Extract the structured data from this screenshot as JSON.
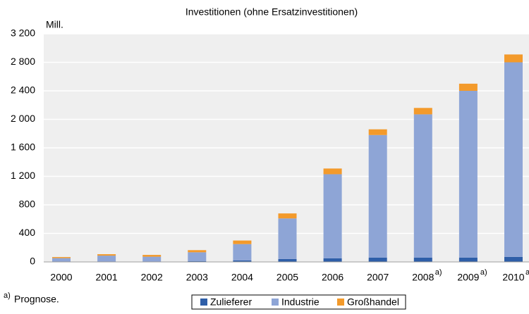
{
  "chart_data": {
    "type": "stacked_bar",
    "title": "Investitionen (ohne Ersatzinvestitionen)",
    "y_unit_label": "Mill.",
    "categories": [
      "2000",
      "2001",
      "2002",
      "2003",
      "2004",
      "2005",
      "2006",
      "2007",
      "2008",
      "2009",
      "2010"
    ],
    "category_notes": [
      null,
      null,
      null,
      null,
      null,
      null,
      null,
      null,
      "a)",
      "a)",
      "a)"
    ],
    "series": [
      {
        "name": "Zulieferer",
        "color": "#2e5ea8",
        "values": [
          3,
          3,
          3,
          10,
          20,
          40,
          50,
          60,
          60,
          60,
          70
        ]
      },
      {
        "name": "Industrie",
        "color": "#8ea5d6",
        "values": [
          50,
          85,
          70,
          125,
          230,
          570,
          1180,
          1720,
          2010,
          2340,
          2730
        ]
      },
      {
        "name": "Großhandel",
        "color": "#f39a2b",
        "values": [
          15,
          20,
          25,
          30,
          50,
          70,
          80,
          80,
          90,
          100,
          110
        ]
      }
    ],
    "ylim": [
      0,
      3200
    ],
    "yticks": [
      0,
      400,
      800,
      {
        "value": 1200,
        "label": "1 200"
      },
      {
        "value": 1600,
        "label": "1 600"
      },
      {
        "value": 2000,
        "label": "2 000"
      },
      {
        "value": 2400,
        "label": "2 400"
      },
      {
        "value": 2800,
        "label": "2 800"
      },
      {
        "value": 3200,
        "label": "3 200"
      }
    ],
    "grid": true,
    "footnote": {
      "marker": "a)",
      "text": "Prognose."
    },
    "legend": "bottom"
  }
}
